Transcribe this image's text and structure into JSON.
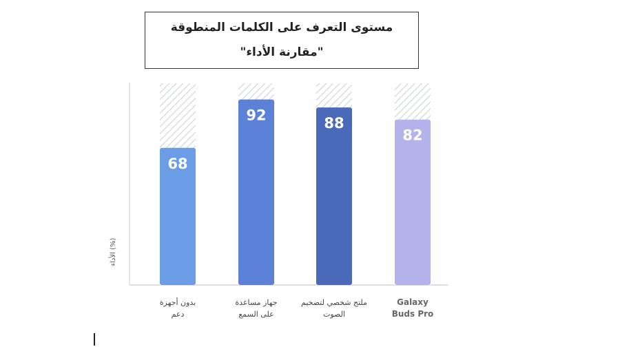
{
  "title": {
    "line1": "مستوى التعرف على  الكلمات المنطوقة",
    "line2": "\"مقارنة الأداء\""
  },
  "chart_data": {
    "type": "bar",
    "ylabel": "الأداء (%)",
    "ylim": [
      0,
      100
    ],
    "categories": [
      [
        "بدون أجهزة",
        "دعم"
      ],
      [
        "جهاز مساعدة",
        "على السمع"
      ],
      [
        "ملتج شخصي لتضخيم",
        "الصوت"
      ],
      [
        "Galaxy",
        "Buds Pro"
      ]
    ],
    "values": [
      68,
      92,
      88,
      82
    ],
    "colors": [
      "#6a9de6",
      "#5b82d6",
      "#4a69b8",
      "#b4b2ea"
    ],
    "grid": false,
    "legend": "none"
  }
}
